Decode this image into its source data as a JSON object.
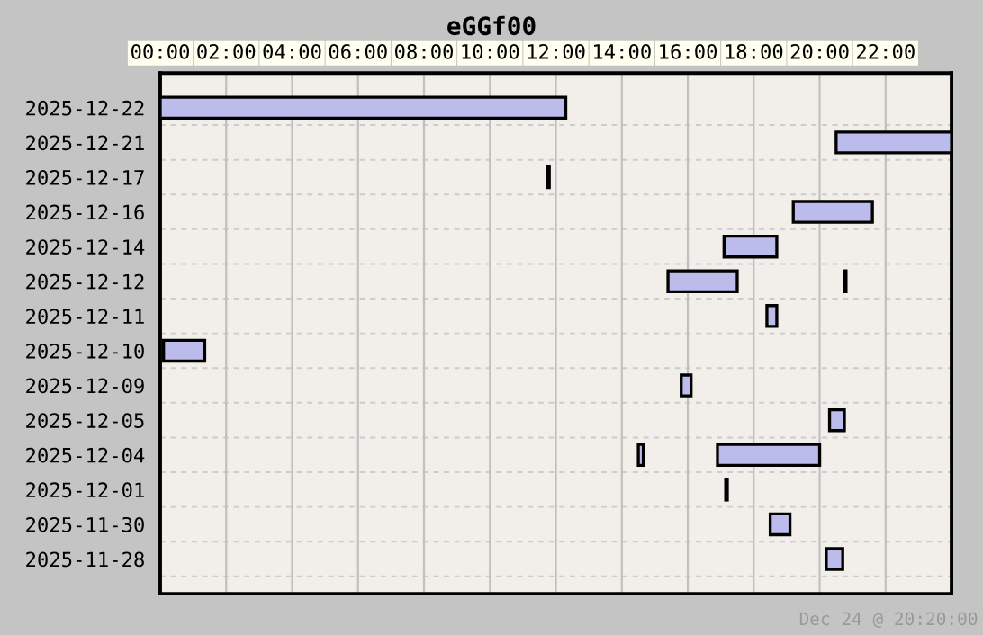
{
  "chart_data": {
    "type": "bar",
    "orientation": "horizontal",
    "title": "eGGf00",
    "categories": [
      "2025-12-22",
      "2025-12-21",
      "2025-12-17",
      "2025-12-16",
      "2025-12-14",
      "2025-12-12",
      "2025-12-11",
      "2025-12-10",
      "2025-12-09",
      "2025-12-05",
      "2025-12-04",
      "2025-12-01",
      "2025-11-30",
      "2025-11-28"
    ],
    "series": [
      {
        "color": "#bcbcec",
        "base": [
          0,
          20.5,
          11.75,
          19.2,
          17.1,
          15.4,
          18.4,
          0.1,
          15.8,
          20.3,
          14.5,
          17.15,
          18.5,
          20.2
        ],
        "values": [
          12.3,
          3.5,
          0.05,
          2.4,
          1.6,
          2.1,
          0.3,
          1.25,
          0.3,
          0.45,
          0.15,
          0.05,
          0.6,
          0.5
        ]
      },
      {
        "color": "#bcbcec",
        "base": [
          null,
          null,
          null,
          null,
          null,
          20.75,
          null,
          null,
          null,
          null,
          16.9,
          null,
          null,
          null
        ],
        "values": [
          null,
          null,
          null,
          null,
          null,
          0.05,
          null,
          null,
          null,
          null,
          3.1,
          null,
          null,
          null
        ]
      }
    ],
    "xlim": [
      0,
      24
    ],
    "xticks": [
      {
        "value": 0,
        "label": "00:00"
      },
      {
        "value": 2,
        "label": "02:00"
      },
      {
        "value": 4,
        "label": "04:00"
      },
      {
        "value": 6,
        "label": "06:00"
      },
      {
        "value": 8,
        "label": "08:00"
      },
      {
        "value": 10,
        "label": "10:00"
      },
      {
        "value": 12,
        "label": "12:00"
      },
      {
        "value": 14,
        "label": "14:00"
      },
      {
        "value": 16,
        "label": "16:00"
      },
      {
        "value": 18,
        "label": "18:00"
      },
      {
        "value": 20,
        "label": "20:00"
      },
      {
        "value": 22,
        "label": "22:00"
      }
    ],
    "grid": true,
    "legend": false,
    "annotations": [
      "Dec 24 @ 20:20:00"
    ]
  }
}
